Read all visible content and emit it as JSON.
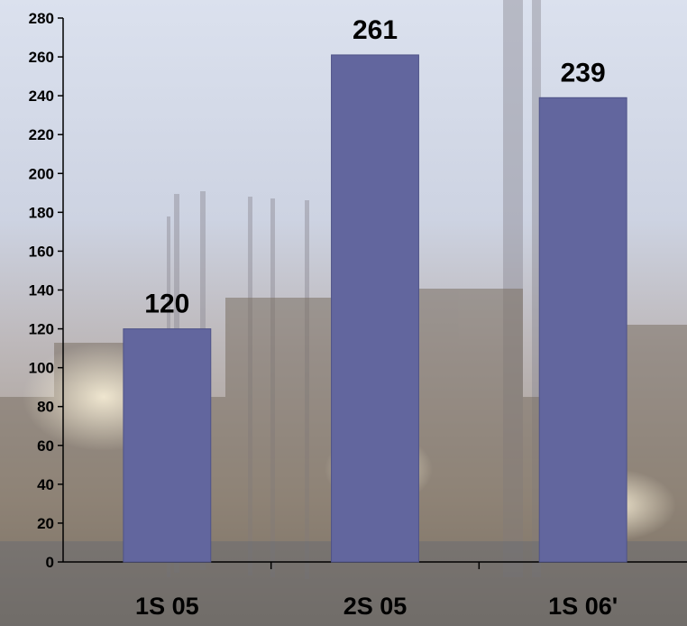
{
  "chart_data": {
    "type": "bar",
    "categories": [
      "1S 05",
      "2S 05",
      "1S 06'"
    ],
    "values": [
      120,
      261,
      239
    ],
    "data_labels": [
      "120",
      "261",
      "239"
    ],
    "title": "",
    "xlabel": "",
    "ylabel": "",
    "ylim": [
      0,
      280
    ],
    "yticks": [
      0,
      20,
      40,
      60,
      80,
      100,
      120,
      140,
      160,
      180,
      200,
      220,
      240,
      260,
      280
    ],
    "grid": false,
    "legend": "none"
  },
  "colors": {
    "bar": "#62669e",
    "bar_edge": "#4f5388",
    "axis": "#000000",
    "text": "#000000",
    "background_sky": "#cfd6e6",
    "background_mid": "#b7b2b4",
    "background_ground": "#8f8577"
  },
  "background_image": "industrial-refinery-photo"
}
